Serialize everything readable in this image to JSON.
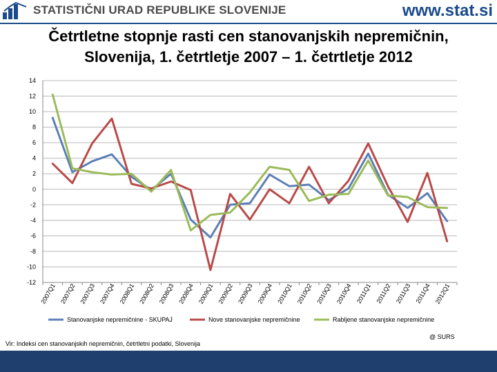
{
  "header": {
    "org_name": "STATISTIČNI URAD REPUBLIKE SLOVENIJE",
    "website": "www.stat.si",
    "logo_icon": "surs-logo-icon"
  },
  "title": {
    "line1": "Četrtletne stopnje rasti cen stanovanjskih nepremičnin,",
    "line2": "Slovenija, 1. četrtletje 2007 – 1. četrtletje 2012"
  },
  "chart_data": {
    "type": "line",
    "title": "Četrtletne stopnje rasti cen stanovanjskih nepremičnin, Slovenija, 1. četrtletje 2007 – 1. četrtletje 2012",
    "xlabel": "",
    "ylabel": "",
    "categories": [
      "2007Q1",
      "2007Q2",
      "2007Q3",
      "2007Q4",
      "2008Q1",
      "2008Q2",
      "2008Q3",
      "2008Q4",
      "2009Q1",
      "2009Q2",
      "2009Q3",
      "2009Q4",
      "2010Q1",
      "2010Q2",
      "2010Q3",
      "2010Q4",
      "2011Q1",
      "2011Q2",
      "2011Q3",
      "2011Q4",
      "2012Q1"
    ],
    "ylim": [
      -12,
      14
    ],
    "yticks": [
      14,
      12,
      10,
      8,
      6,
      4,
      2,
      0,
      -2,
      -4,
      -6,
      -8,
      -10,
      -12
    ],
    "grid": true,
    "legend_position": "bottom",
    "series": [
      {
        "name": "Stanovanjske nepremičnine - SKUPAJ",
        "color": "#5b7fb5",
        "values": [
          9.2,
          2.2,
          3.6,
          4.5,
          1.6,
          -0.1,
          2.0,
          -3.9,
          -6.2,
          -2.0,
          -1.8,
          1.9,
          0.4,
          0.6,
          -1.4,
          0.1,
          4.6,
          -0.7,
          -2.4,
          -0.5,
          -4.1
        ]
      },
      {
        "name": "Nove stanovanjske nepremičnine",
        "color": "#b84a48",
        "values": [
          3.3,
          0.8,
          5.9,
          9.1,
          0.7,
          0.1,
          1.0,
          -0.1,
          -10.4,
          -0.6,
          -3.9,
          0.0,
          -1.8,
          2.9,
          -1.8,
          1.1,
          5.9,
          0.4,
          -4.2,
          2.1,
          -6.7
        ]
      },
      {
        "name": "Rabljene stanovanjske nepremičnine",
        "color": "#9bbb59",
        "values": [
          12.2,
          2.7,
          2.2,
          1.9,
          2.0,
          -0.3,
          2.5,
          -5.3,
          -3.3,
          -3.0,
          -0.4,
          2.9,
          2.5,
          -1.5,
          -0.7,
          -0.6,
          3.7,
          -0.8,
          -1.0,
          -2.3,
          -2.4
        ]
      }
    ]
  },
  "footer": {
    "source": "Vir: Indeksi cen stanovanjskih nepremičnin, četrtletni podatki, Slovenija",
    "credit": "@ SURS"
  }
}
